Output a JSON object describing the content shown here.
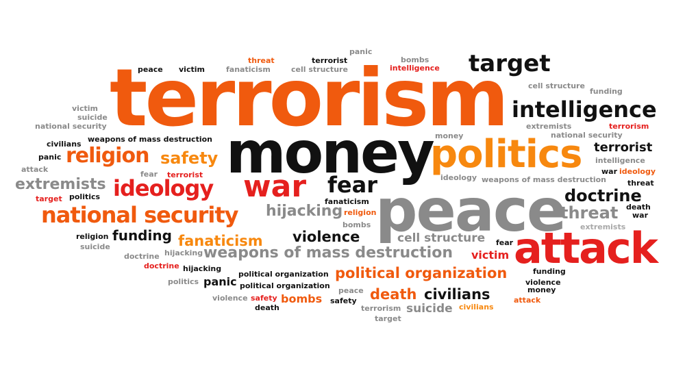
{
  "colors": {
    "orange": "#f05a0e",
    "light_orange": "#f7880f",
    "red": "#e5201e",
    "black": "#111111",
    "dark_gray": "#333333",
    "gray": "#8a8a8a",
    "light_gray": "#a8a8a8"
  },
  "words": [
    {
      "text": "terrorism",
      "color": "orange"
    },
    {
      "text": "money",
      "color": "black"
    },
    {
      "text": "peace",
      "color": "gray"
    },
    {
      "text": "politics",
      "color": "light_orange"
    },
    {
      "text": "attack",
      "color": "red"
    },
    {
      "text": "war",
      "color": "red"
    },
    {
      "text": "target",
      "color": "black"
    },
    {
      "text": "intelligence",
      "color": "black"
    },
    {
      "text": "religion",
      "color": "orange"
    },
    {
      "text": "national security",
      "color": "orange"
    },
    {
      "text": "ideology",
      "color": "red"
    },
    {
      "text": "fear",
      "color": "black"
    },
    {
      "text": "extremists",
      "color": "gray"
    },
    {
      "text": "safety",
      "color": "light_orange"
    },
    {
      "text": "doctrine",
      "color": "black"
    },
    {
      "text": "threat",
      "color": "gray"
    },
    {
      "text": "terrorist",
      "color": "black"
    },
    {
      "text": "hijacking",
      "color": "gray"
    },
    {
      "text": "violence",
      "color": "black"
    },
    {
      "text": "fanaticism",
      "color": "light_orange"
    },
    {
      "text": "funding",
      "color": "black"
    },
    {
      "text": "weapons of mass destruction",
      "color": "gray"
    },
    {
      "text": "political organization",
      "color": "orange"
    },
    {
      "text": "cell structure",
      "color": "gray"
    },
    {
      "text": "death",
      "color": "orange"
    },
    {
      "text": "civilians",
      "color": "black"
    },
    {
      "text": "bombs",
      "color": "orange"
    },
    {
      "text": "suicide",
      "color": "gray"
    },
    {
      "text": "victim",
      "color": "red"
    },
    {
      "text": "panic",
      "color": "black"
    },
    {
      "text": "peace",
      "color": "black"
    },
    {
      "text": "victim",
      "color": "black"
    },
    {
      "text": "fanaticism",
      "color": "gray"
    },
    {
      "text": "threat",
      "color": "orange"
    },
    {
      "text": "terrorist",
      "color": "black"
    },
    {
      "text": "panic",
      "color": "gray"
    },
    {
      "text": "cell structure",
      "color": "gray"
    },
    {
      "text": "bombs",
      "color": "gray"
    },
    {
      "text": "intelligence",
      "color": "red"
    },
    {
      "text": "cell structure",
      "color": "gray"
    },
    {
      "text": "funding",
      "color": "gray"
    },
    {
      "text": "extremists",
      "color": "gray"
    },
    {
      "text": "terrorism",
      "color": "red"
    },
    {
      "text": "national security",
      "color": "gray"
    },
    {
      "text": "intelligence",
      "color": "gray"
    },
    {
      "text": "war",
      "color": "black"
    },
    {
      "text": "ideology",
      "color": "orange"
    },
    {
      "text": "threat",
      "color": "black"
    },
    {
      "text": "death",
      "color": "black"
    },
    {
      "text": "war",
      "color": "black"
    },
    {
      "text": "extremists",
      "color": "light_gray"
    },
    {
      "text": "victim",
      "color": "gray"
    },
    {
      "text": "suicide",
      "color": "gray"
    },
    {
      "text": "national security",
      "color": "gray"
    },
    {
      "text": "civilians",
      "color": "black"
    },
    {
      "text": "weapons of mass destruction",
      "color": "black"
    },
    {
      "text": "panic",
      "color": "black"
    },
    {
      "text": "attack",
      "color": "gray"
    },
    {
      "text": "fear",
      "color": "gray"
    },
    {
      "text": "terrorist",
      "color": "red"
    },
    {
      "text": "target",
      "color": "red"
    },
    {
      "text": "politics",
      "color": "black"
    },
    {
      "text": "money",
      "color": "gray"
    },
    {
      "text": "ideology",
      "color": "gray"
    },
    {
      "text": "weapons of mass destruction",
      "color": "gray"
    },
    {
      "text": "fanaticism",
      "color": "black"
    },
    {
      "text": "religion",
      "color": "orange"
    },
    {
      "text": "bombs",
      "color": "gray"
    },
    {
      "text": "religion",
      "color": "black"
    },
    {
      "text": "suicide",
      "color": "gray"
    },
    {
      "text": "fear",
      "color": "black"
    },
    {
      "text": "doctrine",
      "color": "gray"
    },
    {
      "text": "hijacking",
      "color": "gray"
    },
    {
      "text": "doctrine",
      "color": "red"
    },
    {
      "text": "hijacking",
      "color": "black"
    },
    {
      "text": "politics",
      "color": "gray"
    },
    {
      "text": "political organization",
      "color": "black"
    },
    {
      "text": "political organization",
      "color": "black"
    },
    {
      "text": "violence",
      "color": "gray"
    },
    {
      "text": "safety",
      "color": "red"
    },
    {
      "text": "death",
      "color": "black"
    },
    {
      "text": "peace",
      "color": "gray"
    },
    {
      "text": "safety",
      "color": "black"
    },
    {
      "text": "terrorism",
      "color": "gray"
    },
    {
      "text": "target",
      "color": "gray"
    },
    {
      "text": "funding",
      "color": "black"
    },
    {
      "text": "violence",
      "color": "black"
    },
    {
      "text": "money",
      "color": "black"
    },
    {
      "text": "attack",
      "color": "orange"
    },
    {
      "text": "civilians",
      "color": "light_orange"
    }
  ]
}
